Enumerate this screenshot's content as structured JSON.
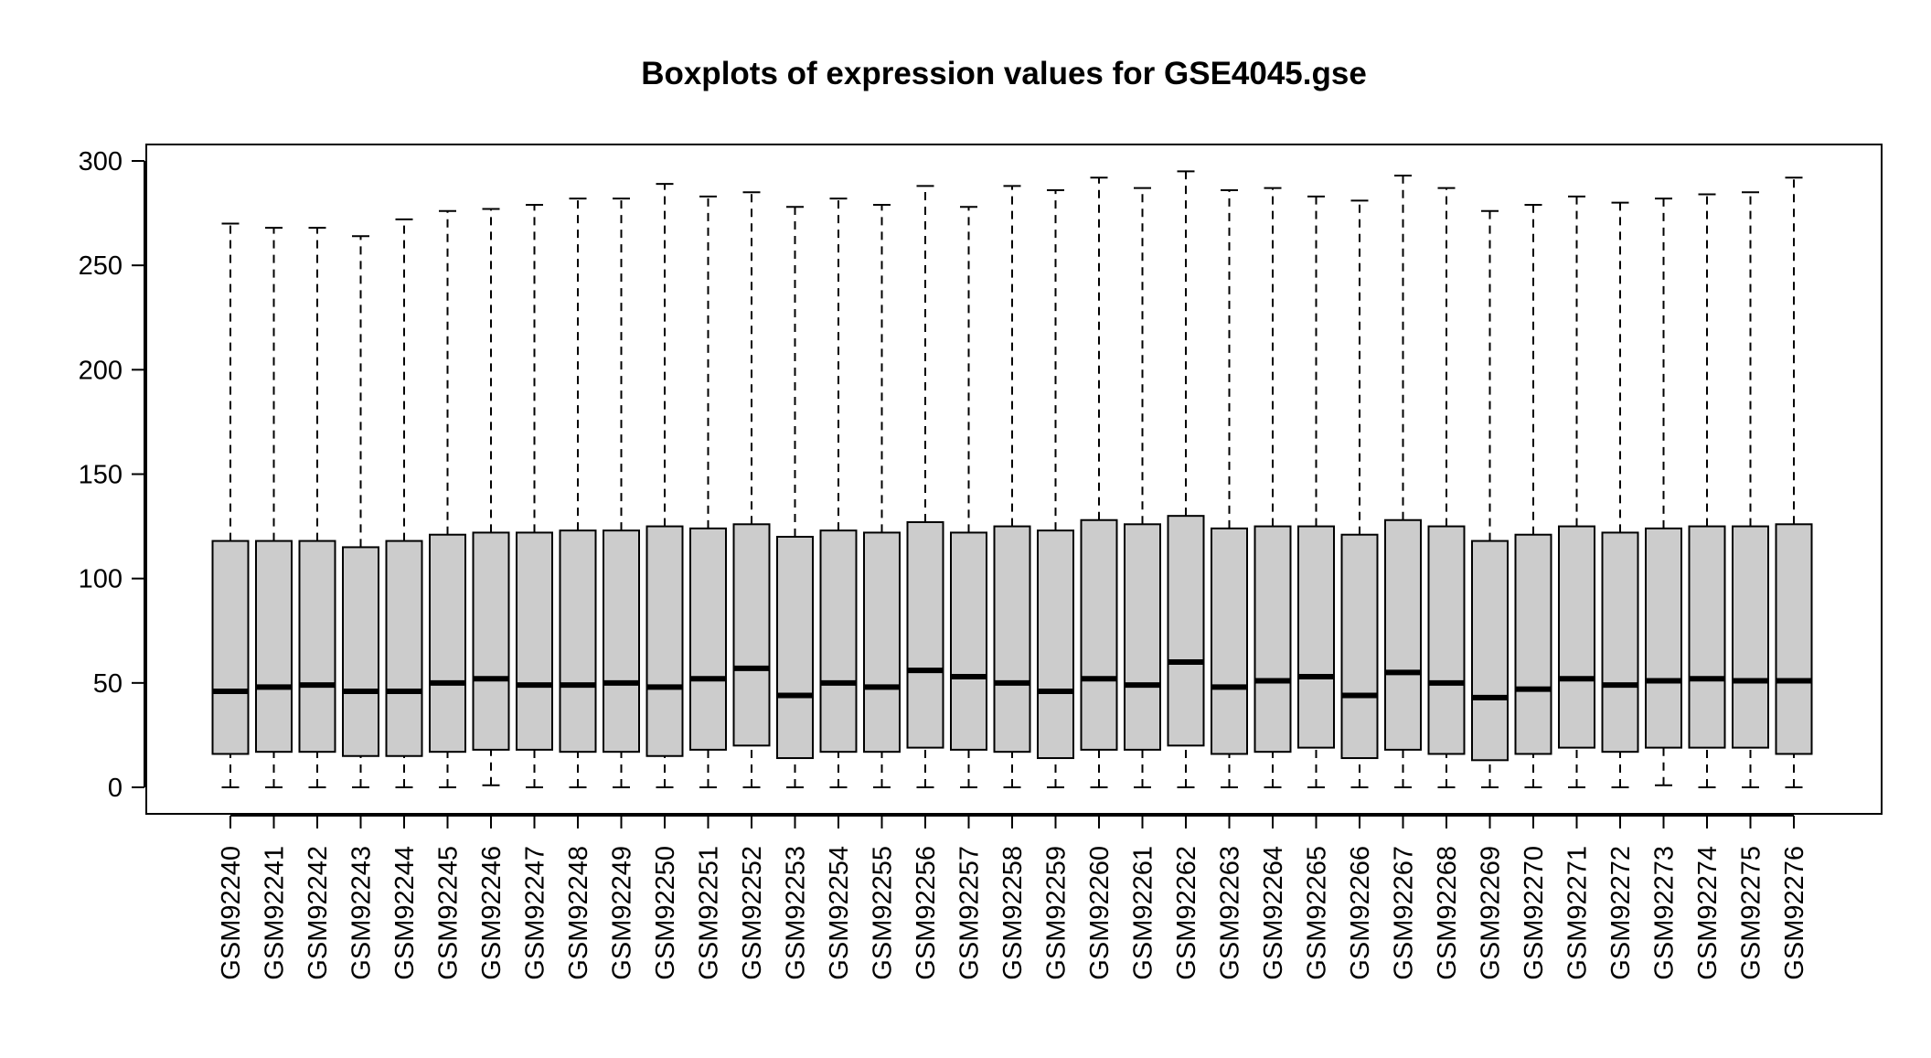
{
  "chart_data": {
    "type": "boxplot",
    "title": "Boxplots of expression values for GSE4045.gse",
    "xlabel": "",
    "ylabel": "",
    "ylim": [
      -10,
      307
    ],
    "yticks": [
      0,
      50,
      100,
      150,
      200,
      250,
      300
    ],
    "grid": false,
    "legend": "none",
    "colors": {
      "box_fill": "#cccccc",
      "stroke": "#000000",
      "background": "#ffffff"
    },
    "samples": [
      {
        "name": "GSM92240",
        "min": 0,
        "q1": 16,
        "median": 46,
        "q3": 118,
        "max": 270
      },
      {
        "name": "GSM92241",
        "min": 0,
        "q1": 17,
        "median": 48,
        "q3": 118,
        "max": 268
      },
      {
        "name": "GSM92242",
        "min": 0,
        "q1": 17,
        "median": 49,
        "q3": 118,
        "max": 268
      },
      {
        "name": "GSM92243",
        "min": 0,
        "q1": 15,
        "median": 46,
        "q3": 115,
        "max": 264
      },
      {
        "name": "GSM92244",
        "min": 0,
        "q1": 15,
        "median": 46,
        "q3": 118,
        "max": 272
      },
      {
        "name": "GSM92245",
        "min": 0,
        "q1": 17,
        "median": 50,
        "q3": 121,
        "max": 276
      },
      {
        "name": "GSM92246",
        "min": 1,
        "q1": 18,
        "median": 52,
        "q3": 122,
        "max": 277
      },
      {
        "name": "GSM92247",
        "min": 0,
        "q1": 18,
        "median": 49,
        "q3": 122,
        "max": 279
      },
      {
        "name": "GSM92248",
        "min": 0,
        "q1": 17,
        "median": 49,
        "q3": 123,
        "max": 282
      },
      {
        "name": "GSM92249",
        "min": 0,
        "q1": 17,
        "median": 50,
        "q3": 123,
        "max": 282
      },
      {
        "name": "GSM92250",
        "min": 0,
        "q1": 15,
        "median": 48,
        "q3": 125,
        "max": 289
      },
      {
        "name": "GSM92251",
        "min": 0,
        "q1": 18,
        "median": 52,
        "q3": 124,
        "max": 283
      },
      {
        "name": "GSM92252",
        "min": 0,
        "q1": 20,
        "median": 57,
        "q3": 126,
        "max": 285
      },
      {
        "name": "GSM92253",
        "min": 0,
        "q1": 14,
        "median": 44,
        "q3": 120,
        "max": 278
      },
      {
        "name": "GSM92254",
        "min": 0,
        "q1": 17,
        "median": 50,
        "q3": 123,
        "max": 282
      },
      {
        "name": "GSM92255",
        "min": 0,
        "q1": 17,
        "median": 48,
        "q3": 122,
        "max": 279
      },
      {
        "name": "GSM92256",
        "min": 0,
        "q1": 19,
        "median": 56,
        "q3": 127,
        "max": 288
      },
      {
        "name": "GSM92257",
        "min": 0,
        "q1": 18,
        "median": 53,
        "q3": 122,
        "max": 278
      },
      {
        "name": "GSM92258",
        "min": 0,
        "q1": 17,
        "median": 50,
        "q3": 125,
        "max": 288
      },
      {
        "name": "GSM92259",
        "min": 0,
        "q1": 14,
        "median": 46,
        "q3": 123,
        "max": 286
      },
      {
        "name": "GSM92260",
        "min": 0,
        "q1": 18,
        "median": 52,
        "q3": 128,
        "max": 292
      },
      {
        "name": "GSM92261",
        "min": 0,
        "q1": 18,
        "median": 49,
        "q3": 126,
        "max": 287
      },
      {
        "name": "GSM92262",
        "min": 0,
        "q1": 20,
        "median": 60,
        "q3": 130,
        "max": 295
      },
      {
        "name": "GSM92263",
        "min": 0,
        "q1": 16,
        "median": 48,
        "q3": 124,
        "max": 286
      },
      {
        "name": "GSM92264",
        "min": 0,
        "q1": 17,
        "median": 51,
        "q3": 125,
        "max": 287
      },
      {
        "name": "GSM92265",
        "min": 0,
        "q1": 19,
        "median": 53,
        "q3": 125,
        "max": 283
      },
      {
        "name": "GSM92266",
        "min": 0,
        "q1": 14,
        "median": 44,
        "q3": 121,
        "max": 281
      },
      {
        "name": "GSM92267",
        "min": 0,
        "q1": 18,
        "median": 55,
        "q3": 128,
        "max": 293
      },
      {
        "name": "GSM92268",
        "min": 0,
        "q1": 16,
        "median": 50,
        "q3": 125,
        "max": 287
      },
      {
        "name": "GSM92269",
        "min": 0,
        "q1": 13,
        "median": 43,
        "q3": 118,
        "max": 276
      },
      {
        "name": "GSM92270",
        "min": 0,
        "q1": 16,
        "median": 47,
        "q3": 121,
        "max": 279
      },
      {
        "name": "GSM92271",
        "min": 0,
        "q1": 19,
        "median": 52,
        "q3": 125,
        "max": 283
      },
      {
        "name": "GSM92272",
        "min": 0,
        "q1": 17,
        "median": 49,
        "q3": 122,
        "max": 280
      },
      {
        "name": "GSM92273",
        "min": 1,
        "q1": 19,
        "median": 51,
        "q3": 124,
        "max": 282
      },
      {
        "name": "GSM92274",
        "min": 0,
        "q1": 19,
        "median": 52,
        "q3": 125,
        "max": 284
      },
      {
        "name": "GSM92275",
        "min": 0,
        "q1": 19,
        "median": 51,
        "q3": 125,
        "max": 285
      },
      {
        "name": "GSM92276",
        "min": 0,
        "q1": 16,
        "median": 51,
        "q3": 126,
        "max": 292
      }
    ]
  }
}
